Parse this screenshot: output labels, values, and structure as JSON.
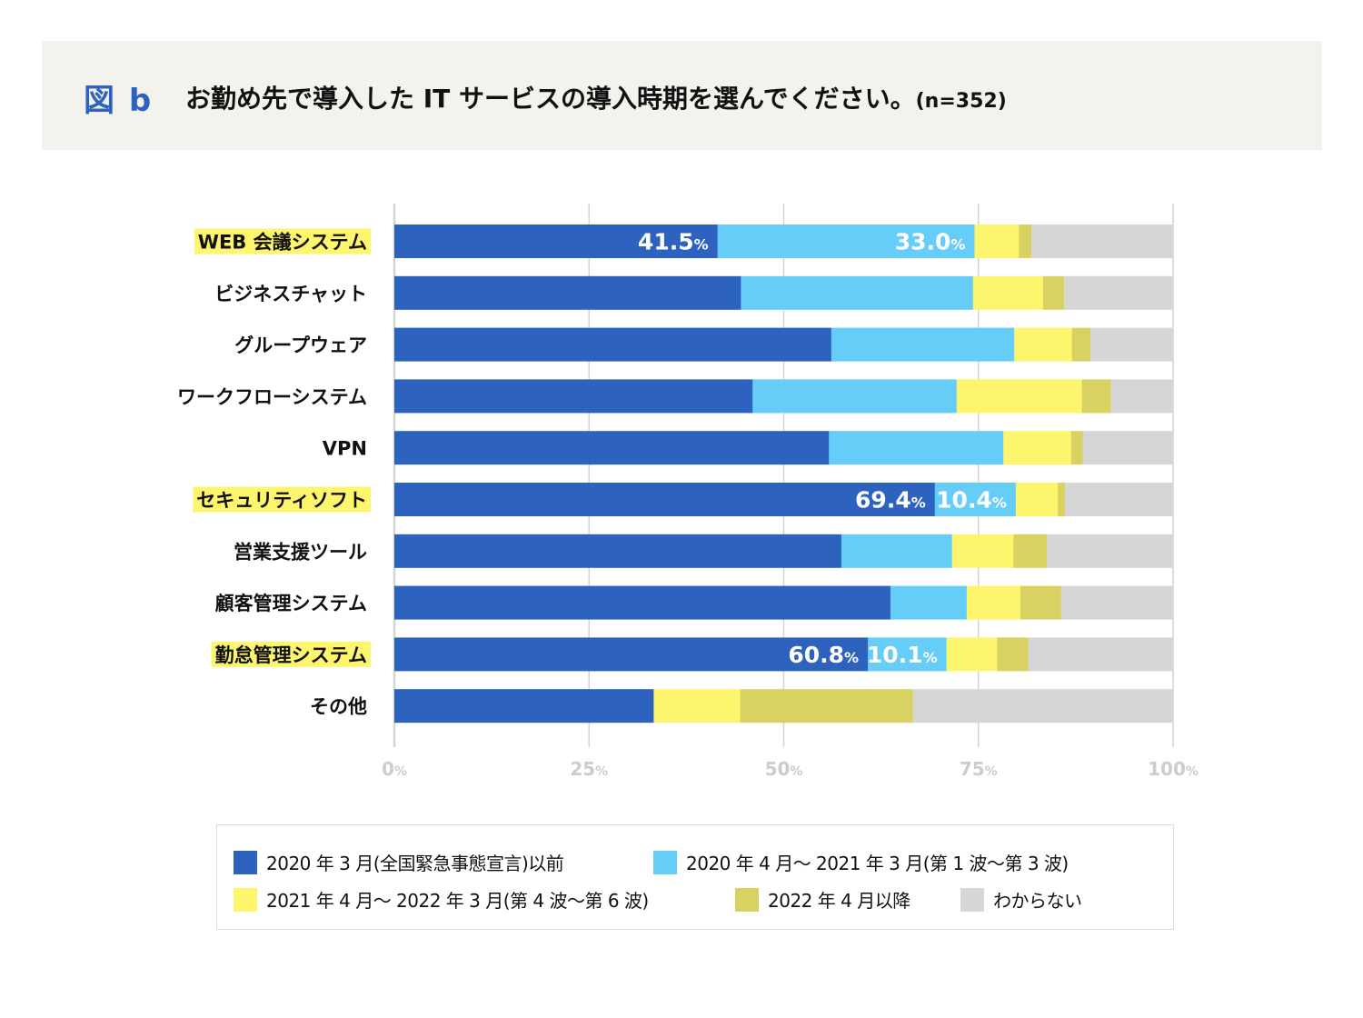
{
  "header": {
    "figure_label": "図 b",
    "title": "お勤め先で導入した IT サービスの導入時期を選んでください。",
    "sample_size": "(n=352)"
  },
  "chart_data": {
    "type": "bar",
    "orientation": "horizontal",
    "stacked": true,
    "title": "お勤め先で導入した IT サービスの導入時期を選んでください。(n=352)",
    "xlabel": "",
    "ylabel": "",
    "xlim": [
      0,
      100
    ],
    "x_ticks": [
      0,
      25,
      50,
      75,
      100
    ],
    "x_tick_labels": [
      "0%",
      "25%",
      "50%",
      "75%",
      "100%"
    ],
    "grid": true,
    "legend_position": "bottom",
    "categories": [
      "WEB 会議システム",
      "ビジネスチャット",
      "グループウェア",
      "ワークフローシステム",
      "VPN",
      "セキュリティソフト",
      "営業支援ツール",
      "顧客管理システム",
      "勤怠管理システム",
      "その他"
    ],
    "highlighted_categories": [
      "WEB 会議システム",
      "セキュリティソフト",
      "勤怠管理システム"
    ],
    "series": [
      {
        "name": "2020 年 3 月(全国緊急事態宣言)以前",
        "color": "#2d63be",
        "values": [
          41.5,
          44.5,
          56.1,
          46.0,
          55.8,
          69.4,
          57.4,
          63.7,
          60.8,
          33.3
        ]
      },
      {
        "name": "2020 年 4 月〜 2021 年 3 月(第 1 波〜第 3 波)",
        "color": "#66cdf8",
        "values": [
          33.0,
          29.8,
          23.5,
          26.2,
          22.4,
          10.4,
          14.2,
          9.8,
          10.1,
          0.0
        ]
      },
      {
        "name": "2021 年 4 月〜 2022 年 3 月(第 4 波〜第 6 波)",
        "color": "#fdf56e",
        "values": [
          5.7,
          9.0,
          7.4,
          16.1,
          8.7,
          5.4,
          7.9,
          6.9,
          6.5,
          11.1
        ]
      },
      {
        "name": "2022 年 4 月以降",
        "color": "#d8d263",
        "values": [
          1.6,
          2.7,
          2.4,
          3.7,
          1.5,
          0.9,
          4.3,
          5.2,
          4.0,
          22.2
        ]
      },
      {
        "name": "わからない",
        "color": "#d6d6d6",
        "values": [
          18.2,
          14.0,
          10.6,
          8.0,
          11.6,
          13.9,
          16.2,
          14.4,
          18.6,
          33.3
        ]
      }
    ],
    "data_labels": [
      {
        "category_index": 0,
        "series_index": 0,
        "text": "41.5",
        "unit": "%"
      },
      {
        "category_index": 0,
        "series_index": 1,
        "text": "33.0",
        "unit": "%"
      },
      {
        "category_index": 5,
        "series_index": 0,
        "text": "69.4",
        "unit": "%"
      },
      {
        "category_index": 5,
        "series_index": 1,
        "text": "10.4",
        "unit": "%"
      },
      {
        "category_index": 8,
        "series_index": 0,
        "text": "60.8",
        "unit": "%"
      },
      {
        "category_index": 8,
        "series_index": 1,
        "text": "10.1",
        "unit": "%"
      }
    ]
  },
  "legend": {
    "items": [
      {
        "label": "2020 年 3 月(全国緊急事態宣言)以前",
        "color": "#2d63be"
      },
      {
        "label": "2020 年 4 月〜 2021 年 3 月(第 1 波〜第 3 波)",
        "color": "#66cdf8"
      },
      {
        "label": "2021 年 4 月〜 2022 年 3 月(第 4 波〜第 6 波)",
        "color": "#fdf56e"
      },
      {
        "label": "2022 年 4 月以降",
        "color": "#d8d263"
      },
      {
        "label": "わからない",
        "color": "#d6d6d6"
      }
    ]
  },
  "colors": {
    "accent": "#2d63be",
    "highlight": "#fdf56e",
    "header_bg": "#f4f2ec",
    "gridline": "#d4d4d4",
    "tick_label": "#cccccc"
  }
}
